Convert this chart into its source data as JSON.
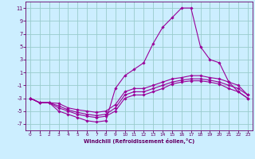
{
  "xlabel": "Windchill (Refroidissement éolien,°C)",
  "background_color": "#cceeff",
  "grid_color": "#99cccc",
  "line_color": "#990099",
  "xlim": [
    -0.5,
    23.5
  ],
  "ylim": [
    -8,
    12
  ],
  "yticks": [
    -7,
    -5,
    -3,
    -1,
    1,
    3,
    5,
    7,
    9,
    11
  ],
  "xticks": [
    0,
    1,
    2,
    3,
    4,
    5,
    6,
    7,
    8,
    9,
    10,
    11,
    12,
    13,
    14,
    15,
    16,
    17,
    18,
    19,
    20,
    21,
    22,
    23
  ],
  "series": [
    [
      -3,
      -3.7,
      -3.7,
      -5.0,
      -5.5,
      -6.0,
      -6.5,
      -6.7,
      -6.5,
      -1.5,
      0.5,
      1.5,
      2.5,
      5.5,
      8.0,
      9.5,
      11.0,
      11.0,
      5.0,
      3.0,
      2.5,
      -0.5,
      -2.0,
      -3.0
    ],
    [
      -3,
      -3.7,
      -3.7,
      -4.5,
      -5.0,
      -5.5,
      -5.8,
      -6.0,
      -5.8,
      -5.0,
      -3.0,
      -2.5,
      -2.5,
      -2.0,
      -1.5,
      -0.8,
      -0.5,
      -0.3,
      -0.3,
      -0.5,
      -0.8,
      -1.5,
      -2.0,
      -3.0
    ],
    [
      -3,
      -3.7,
      -3.7,
      -4.2,
      -4.8,
      -5.2,
      -5.5,
      -5.7,
      -5.5,
      -4.5,
      -2.5,
      -2.0,
      -2.0,
      -1.5,
      -1.0,
      -0.5,
      -0.2,
      0.0,
      0.0,
      -0.2,
      -0.5,
      -1.0,
      -1.5,
      -2.5
    ],
    [
      -3,
      -3.7,
      -3.7,
      -3.8,
      -4.5,
      -4.8,
      -5.0,
      -5.2,
      -5.0,
      -4.0,
      -2.0,
      -1.5,
      -1.5,
      -1.0,
      -0.5,
      0.0,
      0.2,
      0.5,
      0.5,
      0.2,
      0.0,
      -0.5,
      -1.0,
      -2.5
    ]
  ]
}
